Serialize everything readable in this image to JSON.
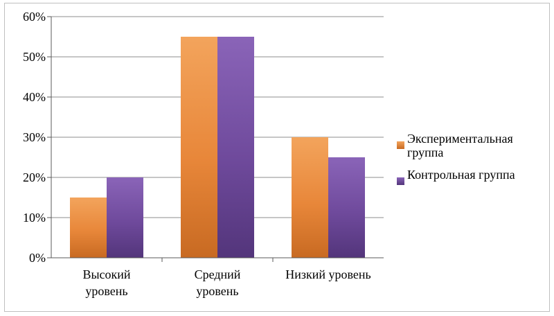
{
  "chart_data": {
    "type": "bar",
    "title": "",
    "xlabel": "",
    "ylabel": "",
    "categories": [
      [
        "Высокий",
        "уровень"
      ],
      [
        "Средний",
        "уровень"
      ],
      [
        "Низкий уровень"
      ]
    ],
    "series": [
      {
        "name": "Экспериментальная группа",
        "legend_lines": [
          "Экспериментальная",
          "группа"
        ],
        "values": [
          15,
          55,
          30
        ],
        "color": "#e8873a",
        "color_light": "#f3a45c",
        "color_dark": "#c86a22"
      },
      {
        "name": "Контрольная группа",
        "legend_lines": [
          "Контрольная группа"
        ],
        "values": [
          20,
          55,
          25
        ],
        "color": "#6f4a9c",
        "color_light": "#8a64b8",
        "color_dark": "#53357b"
      }
    ],
    "ylim": [
      0,
      60
    ],
    "yticks": [
      0,
      10,
      20,
      30,
      40,
      50,
      60
    ],
    "ytick_labels": [
      "0%",
      "10%",
      "20%",
      "30%",
      "40%",
      "50%",
      "60%"
    ],
    "grid": true,
    "legend_position": "right"
  }
}
